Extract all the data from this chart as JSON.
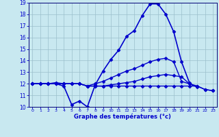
{
  "title": "Graphe des températures (°c)",
  "x_hours": [
    0,
    1,
    2,
    3,
    4,
    5,
    6,
    7,
    8,
    9,
    10,
    11,
    12,
    13,
    14,
    15,
    16,
    17,
    18,
    19,
    20,
    21,
    22,
    23
  ],
  "curve1": [
    12,
    12,
    12,
    12,
    11.8,
    10.2,
    10.5,
    10.0,
    11.9,
    13.1,
    14.1,
    14.9,
    16.1,
    16.6,
    17.9,
    18.9,
    18.9,
    18.0,
    16.5,
    13.9,
    12.1,
    null,
    null,
    null
  ],
  "curve2": [
    12,
    12,
    12,
    12.1,
    12,
    12,
    12,
    11.8,
    12,
    12.2,
    12.5,
    12.8,
    13.1,
    13.3,
    13.6,
    13.9,
    14.1,
    14.2,
    13.9,
    12.2,
    12.0,
    11.7,
    null,
    null
  ],
  "curve3": [
    12,
    12,
    12,
    12,
    12,
    12,
    12,
    11.8,
    11.8,
    11.8,
    11.9,
    12.0,
    12.1,
    12.2,
    12.4,
    12.6,
    12.7,
    12.8,
    12.7,
    12.6,
    12.0,
    11.8,
    11.5,
    11.4
  ],
  "curve4": [
    12,
    12,
    12,
    12,
    12,
    12,
    12,
    11.8,
    11.8,
    11.8,
    11.8,
    11.8,
    11.8,
    11.8,
    11.8,
    11.8,
    11.8,
    11.8,
    11.8,
    11.8,
    11.8,
    11.8,
    11.5,
    11.4
  ],
  "ylim": [
    10,
    19
  ],
  "yticks": [
    10,
    11,
    12,
    13,
    14,
    15,
    16,
    17,
    18,
    19
  ],
  "xlim": [
    -0.5,
    23.5
  ],
  "xticks": [
    0,
    1,
    2,
    3,
    4,
    5,
    6,
    7,
    8,
    9,
    10,
    11,
    12,
    13,
    14,
    15,
    16,
    17,
    18,
    19,
    20,
    21,
    22,
    23
  ],
  "line_color": "#0000cc",
  "bg_color": "#c8e8f0",
  "grid_color": "#9bbfcc",
  "axis_color": "#000077",
  "label_color": "#0000cc",
  "marker": "D",
  "marker_size": 2.5
}
